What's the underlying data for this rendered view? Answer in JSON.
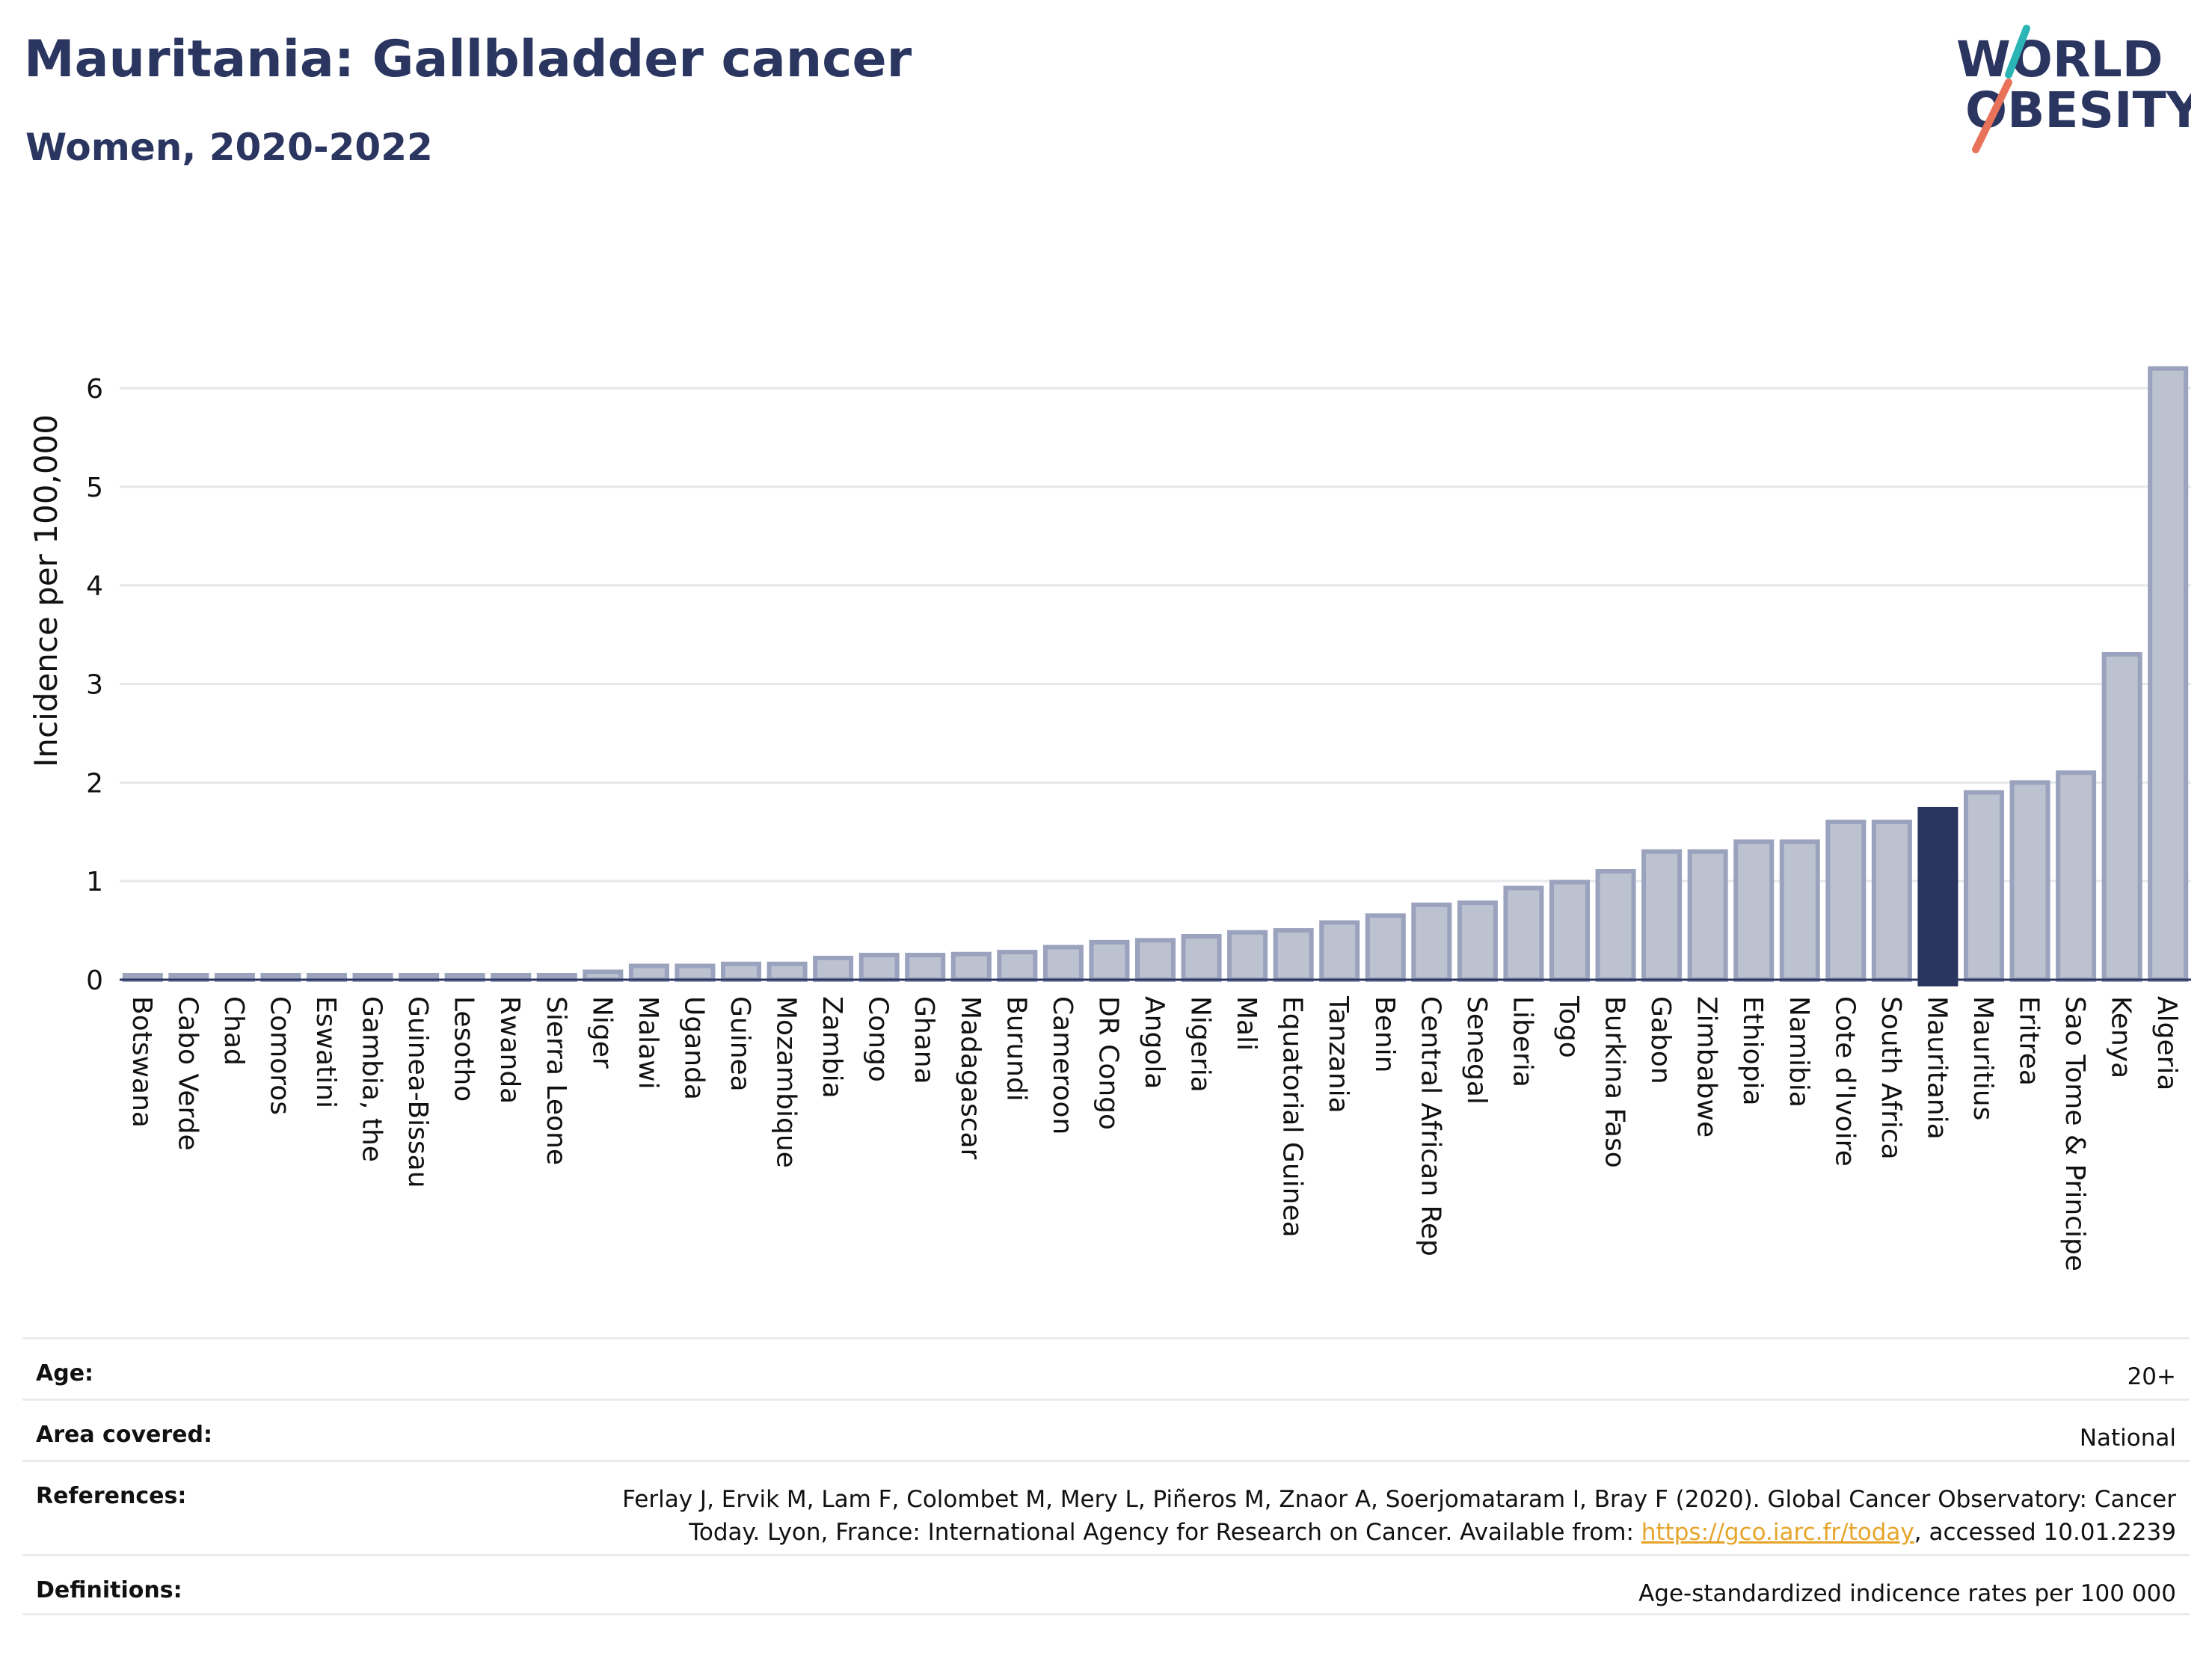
{
  "header": {
    "title": "Mauritania: Gallbladder cancer",
    "subtitle": "Women, 2020-2022"
  },
  "logo": {
    "line1": "WORLD",
    "line2": "OBESITY",
    "stroke_color_top": "#2bb5b5",
    "stroke_color_bottom": "#e8735a"
  },
  "chart_data": {
    "type": "bar",
    "title": "Mauritania: Gallbladder cancer",
    "subtitle": "Women, 2020-2022",
    "xlabel": "",
    "ylabel": "Incidence per 100,000",
    "ylim": [
      0,
      6.6
    ],
    "yticks": [
      0,
      1,
      2,
      3,
      4,
      5,
      6
    ],
    "grid": true,
    "highlight": "Mauritania",
    "colors": {
      "default": "#bcc2d0",
      "default_edge": "#9aa2bd",
      "highlight": "#2a3560"
    },
    "categories": [
      "Botswana",
      "Cabo Verde",
      "Chad",
      "Comoros",
      "Eswatini",
      "Gambia, the",
      "Guinea-Bissau",
      "Lesotho",
      "Rwanda",
      "Sierra Leone",
      "Niger",
      "Malawi",
      "Uganda",
      "Guinea",
      "Mozambique",
      "Zambia",
      "Congo",
      "Ghana",
      "Madagascar",
      "Burundi",
      "Cameroon",
      "DR Congo",
      "Angola",
      "Nigeria",
      "Mali",
      "Equatorial Guinea",
      "Tanzania",
      "Benin",
      "Central African Rep",
      "Senegal",
      "Liberia",
      "Togo",
      "Burkina Faso",
      "Gabon",
      "Zimbabwe",
      "Ethiopia",
      "Namibia",
      "Cote d'Ivoire",
      "South Africa",
      "Mauritania",
      "Mauritius",
      "Eritrea",
      "Sao Tome & Principe",
      "Kenya",
      "Algeria"
    ],
    "values": [
      0.0,
      0.0,
      0.0,
      0.0,
      0.0,
      0.0,
      0.0,
      0.0,
      0.0,
      0.0,
      0.08,
      0.14,
      0.14,
      0.16,
      0.16,
      0.22,
      0.25,
      0.25,
      0.26,
      0.28,
      0.33,
      0.38,
      0.4,
      0.44,
      0.48,
      0.5,
      0.58,
      0.65,
      0.76,
      0.78,
      0.93,
      0.99,
      1.1,
      1.3,
      1.3,
      1.4,
      1.4,
      1.6,
      1.6,
      1.73,
      1.9,
      2.0,
      2.1,
      3.3,
      6.2
    ]
  },
  "info": {
    "age_label": "Age:",
    "age_value": "20+",
    "area_label": "Area covered:",
    "area_value": "National",
    "references_label": "References:",
    "references_line1": "Ferlay J, Ervik M, Lam F, Colombet M, Mery L, Piñeros M, Znaor A, Soerjomataram I, Bray F (2020). Global Cancer Observatory: Cancer",
    "references_line2_pre": "Today. Lyon, France: International Agency for Research on Cancer. Available from: ",
    "references_link": "https://gco.iarc.fr/today",
    "references_line2_post": ", accessed 10.01.2239",
    "definitions_label": "Definitions:",
    "definitions_value": "Age-standardized indicence rates per 100 000"
  }
}
